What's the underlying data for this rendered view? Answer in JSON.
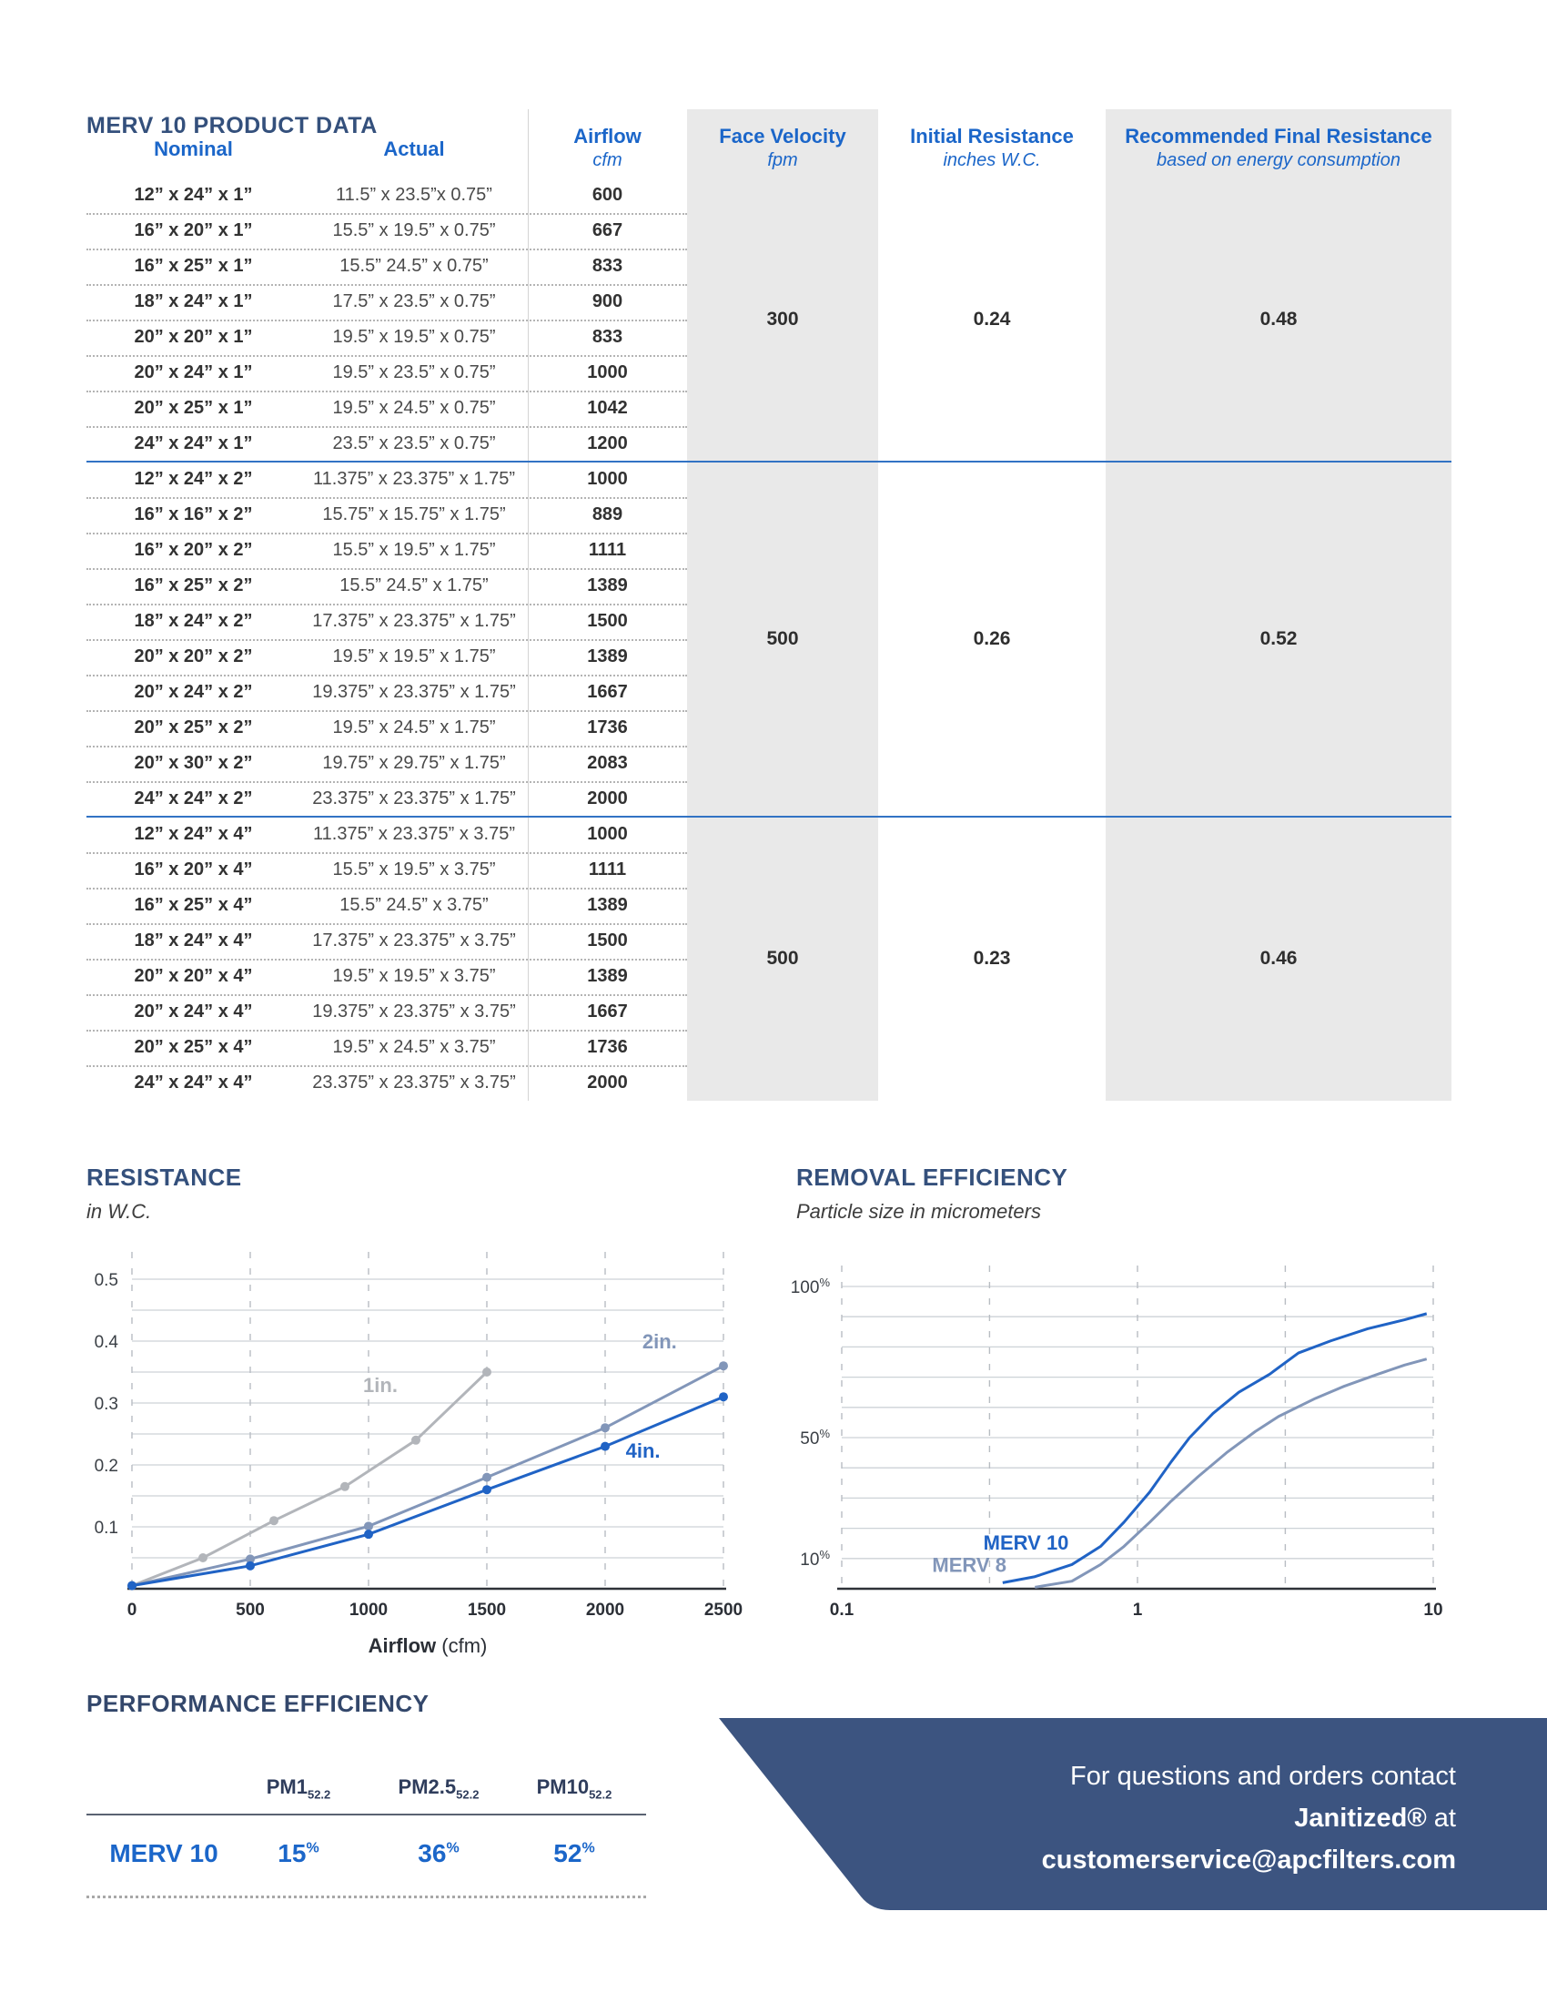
{
  "page": {
    "title": "MERV 10 PRODUCT DATA"
  },
  "colors": {
    "accent_blue": "#1b66c9",
    "navy_heading": "#34507c",
    "panel_gray": "#e9e9e9",
    "group_separator_blue": "#3273c4",
    "banner_navy": "#3c5480",
    "series_1in_gray": "#b2b5ba",
    "series_2in_slate": "#8296b9",
    "series_4in_blue": "#2063c5"
  },
  "product_table": {
    "columns": {
      "nominal": "Nominal",
      "actual": "Actual",
      "airflow": "Airflow",
      "airflow_unit": "cfm",
      "face_velocity": "Face Velocity",
      "face_velocity_unit": "fpm",
      "initial_resistance": "Initial Resistance",
      "initial_resistance_unit": "inches W.C.",
      "final_resistance": "Recommended Final Resistance",
      "final_resistance_unit": "based on energy consumption"
    },
    "groups": [
      {
        "face_velocity": "300",
        "initial_resistance": "0.24",
        "final_resistance": "0.48",
        "rows": [
          {
            "nominal": "12” x 24” x 1”",
            "actual": "11.5” x 23.5”x 0.75”",
            "airflow": "600"
          },
          {
            "nominal": "16” x 20” x 1”",
            "actual": "15.5” x 19.5” x 0.75”",
            "airflow": "667"
          },
          {
            "nominal": "16” x 25” x 1”",
            "actual": "15.5” 24.5” x 0.75”",
            "airflow": "833"
          },
          {
            "nominal": "18” x 24” x 1”",
            "actual": "17.5” x 23.5” x 0.75”",
            "airflow": "900"
          },
          {
            "nominal": "20” x 20” x 1”",
            "actual": "19.5” x 19.5” x 0.75”",
            "airflow": "833"
          },
          {
            "nominal": "20” x 24” x 1”",
            "actual": "19.5” x 23.5” x 0.75”",
            "airflow": "1000"
          },
          {
            "nominal": "20” x 25” x 1”",
            "actual": "19.5” x 24.5” x 0.75”",
            "airflow": "1042"
          },
          {
            "nominal": "24” x 24” x 1”",
            "actual": "23.5” x 23.5” x 0.75”",
            "airflow": "1200"
          }
        ]
      },
      {
        "face_velocity": "500",
        "initial_resistance": "0.26",
        "final_resistance": "0.52",
        "rows": [
          {
            "nominal": "12” x 24” x 2”",
            "actual": "11.375” x 23.375” x 1.75”",
            "airflow": "1000"
          },
          {
            "nominal": "16” x 16” x 2”",
            "actual": "15.75” x 15.75” x 1.75”",
            "airflow": "889"
          },
          {
            "nominal": "16” x 20” x 2”",
            "actual": "15.5” x 19.5” x 1.75”",
            "airflow": "1111"
          },
          {
            "nominal": "16” x 25” x 2”",
            "actual": "15.5” 24.5” x 1.75”",
            "airflow": "1389"
          },
          {
            "nominal": "18” x 24” x 2”",
            "actual": "17.375” x 23.375” x 1.75”",
            "airflow": "1500"
          },
          {
            "nominal": "20” x 20” x 2”",
            "actual": "19.5” x 19.5” x 1.75”",
            "airflow": "1389"
          },
          {
            "nominal": "20” x 24” x 2”",
            "actual": "19.375” x 23.375” x 1.75”",
            "airflow": "1667"
          },
          {
            "nominal": "20” x 25” x 2”",
            "actual": "19.5” x 24.5” x 1.75”",
            "airflow": "1736"
          },
          {
            "nominal": "20” x 30” x 2”",
            "actual": "19.75” x 29.75” x 1.75”",
            "airflow": "2083"
          },
          {
            "nominal": "24” x 24” x 2”",
            "actual": "23.375” x 23.375” x 1.75”",
            "airflow": "2000"
          }
        ]
      },
      {
        "face_velocity": "500",
        "initial_resistance": "0.23",
        "final_resistance": "0.46",
        "rows": [
          {
            "nominal": "12” x 24” x 4”",
            "actual": "11.375” x 23.375” x 3.75”",
            "airflow": "1000"
          },
          {
            "nominal": "16” x 20” x 4”",
            "actual": "15.5” x 19.5” x 3.75”",
            "airflow": "1111"
          },
          {
            "nominal": "16” x 25” x 4”",
            "actual": "15.5” 24.5” x 3.75”",
            "airflow": "1389"
          },
          {
            "nominal": "18” x 24” x 4”",
            "actual": "17.375” x 23.375” x 3.75”",
            "airflow": "1500"
          },
          {
            "nominal": "20” x 20” x 4”",
            "actual": "19.5” x 19.5” x 3.75”",
            "airflow": "1389"
          },
          {
            "nominal": "20” x 24” x 4”",
            "actual": "19.375” x 23.375” x 3.75”",
            "airflow": "1667"
          },
          {
            "nominal": "20” x 25” x 4”",
            "actual": "19.5” x 24.5” x 3.75”",
            "airflow": "1736"
          },
          {
            "nominal": "24” x 24” x 4”",
            "actual": "23.375” x 23.375” x 3.75”",
            "airflow": "2000"
          }
        ]
      }
    ]
  },
  "chart_data": [
    {
      "id": "resistance",
      "type": "line",
      "title": "RESISTANCE",
      "subtitle": "in W.C.",
      "xlabel": "Airflow",
      "xlabel_unit": "(cfm)",
      "xlim": [
        0,
        2500
      ],
      "ylim": [
        0,
        0.52
      ],
      "x_ticks": [
        0,
        500,
        1000,
        1500,
        2000,
        2500
      ],
      "y_ticks": [
        0.1,
        0.2,
        0.3,
        0.4,
        0.5
      ],
      "y_gridstep": 0.05,
      "grid": "horizontal solid, vertical dashed",
      "series": [
        {
          "name": "1in.",
          "color": "#b2b5ba",
          "x": [
            0,
            300,
            600,
            900,
            1200,
            1500
          ],
          "y": [
            0.005,
            0.05,
            0.11,
            0.165,
            0.24,
            0.35
          ],
          "label_at": [
            1050,
            0.318
          ]
        },
        {
          "name": "2in.",
          "color": "#8296b9",
          "x": [
            0,
            500,
            1000,
            1500,
            2000,
            2500
          ],
          "y": [
            0.005,
            0.048,
            0.101,
            0.18,
            0.26,
            0.36
          ],
          "label_at": [
            2230,
            0.388
          ]
        },
        {
          "name": "4in.",
          "color": "#2063c5",
          "x": [
            0,
            500,
            1000,
            1500,
            2000,
            2500
          ],
          "y": [
            0.005,
            0.037,
            0.088,
            0.16,
            0.23,
            0.31
          ],
          "label_at": [
            2160,
            0.212
          ]
        }
      ]
    },
    {
      "id": "removal",
      "type": "line-logx",
      "title": "REMOVAL EFFICIENCY",
      "subtitle": "Particle size in micrometers",
      "xlim": [
        0.1,
        10
      ],
      "ylim": [
        0,
        105
      ],
      "x_ticks": [
        0.1,
        1,
        10
      ],
      "x_grid": [
        0.1,
        0.316,
        1,
        3.16,
        10
      ],
      "y_ticks": [
        10,
        50,
        100
      ],
      "y_grid": [
        10,
        20,
        30,
        40,
        50,
        60,
        70,
        80,
        90,
        100
      ],
      "y_unit": "%",
      "series": [
        {
          "name": "MERV 10",
          "color": "#2063c5",
          "points": [
            [
              0.35,
              2
            ],
            [
              0.45,
              4
            ],
            [
              0.6,
              8
            ],
            [
              0.75,
              14
            ],
            [
              0.9,
              22
            ],
            [
              1.1,
              32
            ],
            [
              1.3,
              42
            ],
            [
              1.5,
              50
            ],
            [
              1.8,
              58
            ],
            [
              2.2,
              65
            ],
            [
              2.8,
              71
            ],
            [
              3.5,
              78
            ],
            [
              4.5,
              82
            ],
            [
              6,
              86
            ],
            [
              8,
              89
            ],
            [
              9.5,
              91
            ]
          ],
          "label_at": [
            0.42,
            13
          ]
        },
        {
          "name": "MERV 8",
          "color": "#8296b9",
          "points": [
            [
              0.45,
              0.5
            ],
            [
              0.6,
              2.5
            ],
            [
              0.75,
              8
            ],
            [
              0.9,
              14
            ],
            [
              1.1,
              22
            ],
            [
              1.3,
              29
            ],
            [
              1.6,
              37
            ],
            [
              2,
              45
            ],
            [
              2.5,
              52
            ],
            [
              3,
              57
            ],
            [
              4,
              63
            ],
            [
              5,
              67
            ],
            [
              6.5,
              71
            ],
            [
              8,
              74
            ],
            [
              9.5,
              76
            ]
          ],
          "label_at": [
            0.27,
            5.5
          ]
        }
      ]
    }
  ],
  "performance": {
    "title": "PERFORMANCE EFFICIENCY",
    "row_label": "MERV 10",
    "headers": [
      {
        "name": "PM1",
        "sub": "52.2"
      },
      {
        "name": "PM2.5",
        "sub": "52.2"
      },
      {
        "name": "PM10",
        "sub": "52.2"
      }
    ],
    "values": [
      {
        "value": "15",
        "unit": "%"
      },
      {
        "value": "36",
        "unit": "%"
      },
      {
        "value": "52",
        "unit": "%"
      }
    ]
  },
  "banner": {
    "line1": "For questions and orders contact",
    "line2_bold": "Janitized®",
    "line2_rest": " at",
    "line3": "customerservice@apcfilters.com"
  }
}
